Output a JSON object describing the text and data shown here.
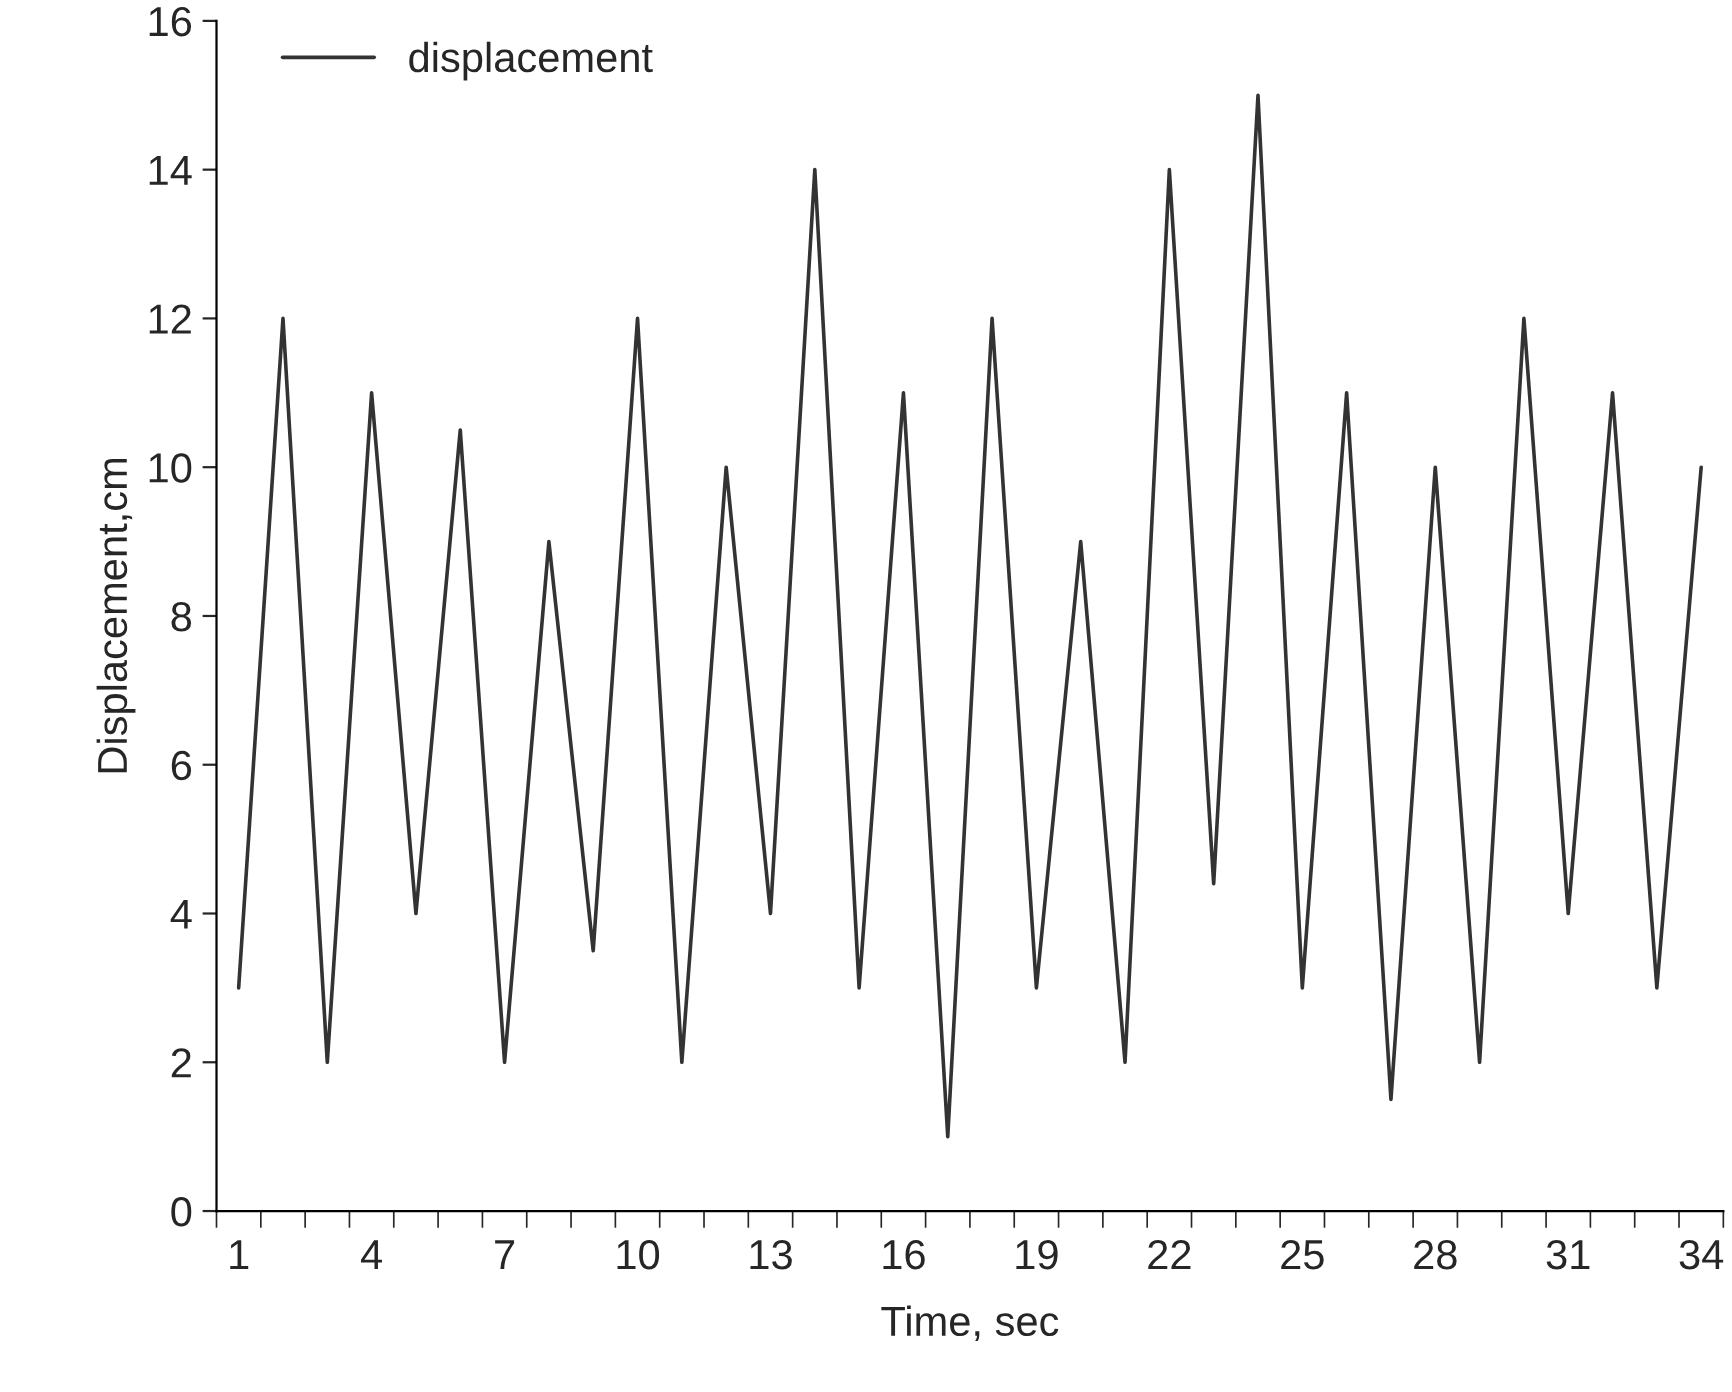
{
  "chart_data": {
    "type": "line",
    "xlabel": "Time, sec",
    "ylabel": "Displacement,cm",
    "categories": [
      "1",
      null,
      null,
      "4",
      null,
      null,
      "7",
      null,
      null,
      "10",
      null,
      null,
      "13",
      null,
      null,
      "16",
      null,
      null,
      "19",
      null,
      null,
      "22",
      null,
      null,
      "25",
      null,
      null,
      "28",
      null,
      null,
      "31",
      null,
      null,
      "34"
    ],
    "series": [
      {
        "name": "displacement",
        "color": "#333333",
        "values": [
          3,
          12,
          2,
          11,
          4,
          10.5,
          2,
          9,
          3.5,
          12,
          2,
          10,
          4,
          14,
          3,
          11,
          1,
          12,
          3,
          9,
          2,
          14,
          4.4,
          15,
          3,
          11,
          1.5,
          10,
          2,
          12,
          4,
          11,
          3,
          10
        ]
      }
    ],
    "ylim": [
      0,
      16
    ],
    "yticks": [
      0,
      2,
      4,
      6,
      8,
      10,
      12,
      14,
      16
    ],
    "grid": false,
    "legend": "top left",
    "marker": "none",
    "line_style": "solid"
  }
}
